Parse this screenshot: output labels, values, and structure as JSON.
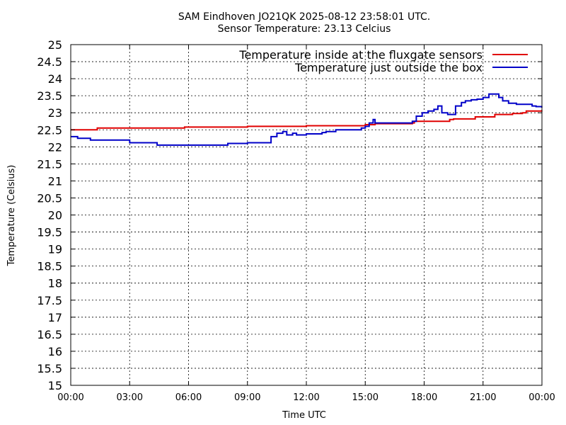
{
  "chart_data": {
    "type": "line",
    "title": "SAM Eindhoven JO21QK 2025-08-12 23:58:01 UTC.",
    "subtitle": "Sensor Temperature: 23.13 Celcius",
    "xlabel": "Time UTC",
    "ylabel": "Temperature (Celsius)",
    "xlim": [
      0,
      24
    ],
    "ylim": [
      15,
      25
    ],
    "x_ticks": [
      "00:00",
      "03:00",
      "06:00",
      "09:00",
      "12:00",
      "15:00",
      "18:00",
      "21:00",
      "00:00"
    ],
    "y_ticks": [
      "15",
      "15.5",
      "16",
      "16.5",
      "17",
      "17.5",
      "18",
      "18.5",
      "19",
      "19.5",
      "20",
      "20.5",
      "21",
      "21.5",
      "22",
      "22.5",
      "23",
      "23.5",
      "24",
      "24.5",
      "25"
    ],
    "grid": true,
    "legend_position": "top-right",
    "series": [
      {
        "name": "Temperature inside at the fluxgate sensors",
        "color": "#e00000",
        "x": [
          0,
          1.3,
          1.35,
          2.0,
          3.0,
          5.0,
          5.8,
          6.0,
          8.0,
          9.0,
          10.0,
          11.0,
          12.0,
          14.5,
          15.0,
          15.3,
          15.5,
          16.5,
          17.4,
          17.5,
          18.0,
          19.0,
          19.3,
          19.5,
          20.0,
          20.5,
          20.6,
          21.0,
          21.5,
          21.6,
          22.0,
          22.5,
          23.0,
          23.2,
          23.99
        ],
        "y": [
          22.5,
          22.5,
          22.55,
          22.55,
          22.55,
          22.55,
          22.58,
          22.58,
          22.58,
          22.6,
          22.6,
          22.6,
          22.62,
          22.62,
          22.65,
          22.65,
          22.68,
          22.68,
          22.7,
          22.75,
          22.75,
          22.75,
          22.8,
          22.82,
          22.82,
          22.82,
          22.88,
          22.88,
          22.88,
          22.95,
          22.95,
          22.98,
          23.0,
          23.05,
          23.08
        ]
      },
      {
        "name": "Temperature just outside the box",
        "color": "#0000c8",
        "x": [
          0,
          0.3,
          0.35,
          0.9,
          1.0,
          2.8,
          3.0,
          4.3,
          4.4,
          5.0,
          6.0,
          6.5,
          7.5,
          8.0,
          8.5,
          9.0,
          10.1,
          10.2,
          10.5,
          10.8,
          11.0,
          11.3,
          11.5,
          11.7,
          12.0,
          12.5,
          12.8,
          13.0,
          13.5,
          14.0,
          14.5,
          14.8,
          15.0,
          15.2,
          15.4,
          15.5,
          16.0,
          16.5,
          17.0,
          17.4,
          17.6,
          17.9,
          18.2,
          18.5,
          18.7,
          18.9,
          19.2,
          19.6,
          19.9,
          20.1,
          20.4,
          20.7,
          21.0,
          21.3,
          21.6,
          21.8,
          22.0,
          22.3,
          22.7,
          23.0,
          23.3,
          23.5,
          23.7,
          23.99
        ],
        "y": [
          22.3,
          22.3,
          22.25,
          22.25,
          22.2,
          22.2,
          22.12,
          22.12,
          22.05,
          22.05,
          22.05,
          22.05,
          22.05,
          22.1,
          22.1,
          22.12,
          22.12,
          22.3,
          22.4,
          22.45,
          22.35,
          22.4,
          22.35,
          22.35,
          22.38,
          22.38,
          22.42,
          22.45,
          22.5,
          22.5,
          22.5,
          22.55,
          22.6,
          22.7,
          22.8,
          22.7,
          22.7,
          22.7,
          22.7,
          22.75,
          22.9,
          23.0,
          23.05,
          23.1,
          23.2,
          23.0,
          22.95,
          23.2,
          23.3,
          23.35,
          23.38,
          23.4,
          23.45,
          23.55,
          23.55,
          23.45,
          23.35,
          23.28,
          23.25,
          23.25,
          23.25,
          23.2,
          23.18,
          23.15
        ]
      }
    ]
  }
}
